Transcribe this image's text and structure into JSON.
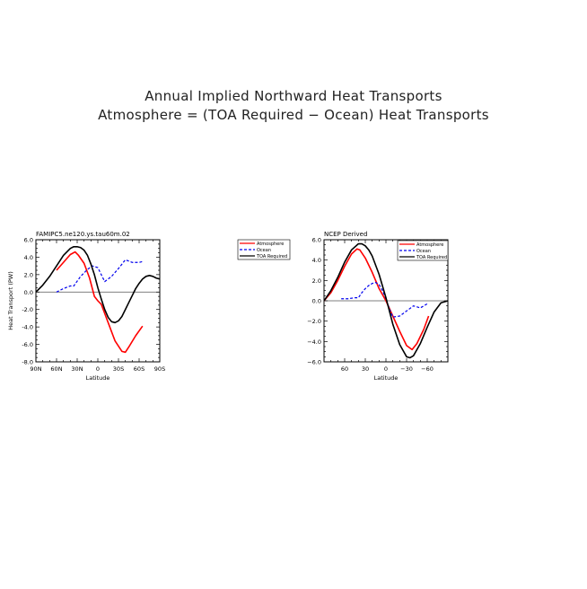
{
  "title_line1": "Annual Implied Northward Heat Transports",
  "title_line2": "Atmosphere = (TOA Required − Ocean) Heat Transports",
  "colors": {
    "atmosphere": "#ff0000",
    "ocean": "#0000ee",
    "toa": "#000000",
    "zero": "#555555"
  },
  "chart_data": [
    {
      "type": "line",
      "title": "FAMIPC5.ne120.ys.tau60m.02",
      "xlabel": "Latitude",
      "ylabel": "Heat Transport (PW)",
      "xlim": [
        90,
        -90
      ],
      "ylim": [
        -8,
        6
      ],
      "x_ticks": [
        90,
        60,
        30,
        0,
        -30,
        -60,
        -90
      ],
      "x_tick_labels": [
        "90N",
        "60N",
        "30N",
        "0",
        "30S",
        "60S",
        "90S"
      ],
      "y_ticks": [
        6,
        4,
        2,
        0,
        -2,
        -4,
        -6,
        -8
      ],
      "y_tick_labels": [
        "6.0",
        "4.0",
        "2.0",
        "0.0",
        "-2.0",
        "-4.0",
        "-6.0",
        "-8.0"
      ],
      "legend_position": "right-outside",
      "legend": [
        "Atmosphere",
        "Ocean",
        "TOA Required"
      ],
      "series": [
        {
          "name": "Atmosphere",
          "style": "solid",
          "color": "#ff0000",
          "x": [
            60,
            50,
            40,
            33,
            28,
            20,
            12,
            5,
            0,
            -5,
            -15,
            -25,
            -35,
            -40,
            -45,
            -55,
            -65
          ],
          "y": [
            2.5,
            3.4,
            4.3,
            4.6,
            4.2,
            3.3,
            1.6,
            -0.5,
            -1.0,
            -1.4,
            -3.5,
            -5.6,
            -6.8,
            -6.9,
            -6.3,
            -5.0,
            -3.9
          ]
        },
        {
          "name": "Ocean",
          "style": "dashed",
          "color": "#0000ee",
          "x": [
            60,
            55,
            50,
            40,
            35,
            25,
            15,
            8,
            0,
            -5,
            -10,
            -20,
            -30,
            -40,
            -50,
            -60,
            -65
          ],
          "y": [
            0.0,
            0.2,
            0.4,
            0.7,
            0.7,
            1.8,
            2.6,
            3.0,
            2.8,
            2.0,
            1.2,
            1.8,
            2.7,
            3.7,
            3.4,
            3.4,
            3.5
          ]
        },
        {
          "name": "TOA Required",
          "style": "solid",
          "color": "#000000",
          "x": [
            90,
            80,
            70,
            60,
            50,
            40,
            35,
            30,
            25,
            20,
            15,
            10,
            5,
            0,
            -5,
            -10,
            -15,
            -20,
            -25,
            -30,
            -35,
            -40,
            -45,
            -50,
            -55,
            -60,
            -65,
            -70,
            -75,
            -80,
            -85,
            -90
          ],
          "y": [
            0,
            0.8,
            1.8,
            3.0,
            4.2,
            5.0,
            5.2,
            5.2,
            5.1,
            4.8,
            4.2,
            3.2,
            2.0,
            0.5,
            -0.8,
            -2.0,
            -2.9,
            -3.4,
            -3.5,
            -3.3,
            -2.8,
            -2.0,
            -1.2,
            -0.4,
            0.4,
            1.0,
            1.5,
            1.8,
            1.9,
            1.8,
            1.6,
            1.5
          ]
        }
      ]
    },
    {
      "type": "line",
      "title": "NCEP Derived",
      "xlabel": "Latitude",
      "ylabel": "",
      "xlim": [
        90,
        -90
      ],
      "ylim": [
        -6,
        6
      ],
      "x_ticks": [
        60,
        30,
        0,
        -30,
        -60
      ],
      "x_tick_labels": [
        "60",
        "30",
        "0",
        "−30",
        "−60"
      ],
      "y_ticks": [
        6,
        4,
        2,
        0,
        -2,
        -4,
        -6
      ],
      "y_tick_labels": [
        "6.0",
        "4.0",
        "2.0",
        "0.0",
        "−2.0",
        "−4.0",
        "−6.0"
      ],
      "legend_position": "top-right",
      "legend": [
        "Atmosphere",
        "Ocean",
        "TOA Required"
      ],
      "series": [
        {
          "name": "Atmosphere",
          "style": "solid",
          "color": "#ff0000",
          "x": [
            90,
            80,
            70,
            60,
            50,
            42,
            38,
            30,
            20,
            10,
            0,
            -10,
            -20,
            -30,
            -38,
            -45,
            -55,
            -62
          ],
          "y": [
            0,
            0.8,
            2.0,
            3.4,
            4.6,
            5.1,
            5.0,
            4.2,
            2.8,
            1.2,
            0,
            -1.5,
            -3.0,
            -4.4,
            -4.8,
            -4.2,
            -2.8,
            -1.5
          ]
        },
        {
          "name": "Ocean",
          "style": "dashed",
          "color": "#0000ee",
          "x": [
            65,
            55,
            45,
            40,
            35,
            30,
            25,
            20,
            15,
            10,
            5,
            0,
            -5,
            -10,
            -20,
            -30,
            -40,
            -50,
            -60
          ],
          "y": [
            0.2,
            0.2,
            0.3,
            0.3,
            0.8,
            1.2,
            1.5,
            1.7,
            1.8,
            1.6,
            1.0,
            0.2,
            -0.8,
            -1.6,
            -1.5,
            -1.0,
            -0.5,
            -0.7,
            -0.3
          ]
        },
        {
          "name": "TOA Required",
          "style": "solid",
          "color": "#000000",
          "x": [
            90,
            80,
            70,
            60,
            50,
            40,
            35,
            30,
            25,
            20,
            10,
            0,
            -10,
            -20,
            -30,
            -35,
            -40,
            -50,
            -60,
            -70,
            -80,
            -90
          ],
          "y": [
            0,
            1.0,
            2.3,
            3.8,
            5.0,
            5.6,
            5.6,
            5.4,
            5.0,
            4.4,
            2.6,
            0.3,
            -2.3,
            -4.3,
            -5.5,
            -5.6,
            -5.4,
            -4.2,
            -2.6,
            -1.1,
            -0.2,
            0
          ]
        }
      ]
    }
  ]
}
